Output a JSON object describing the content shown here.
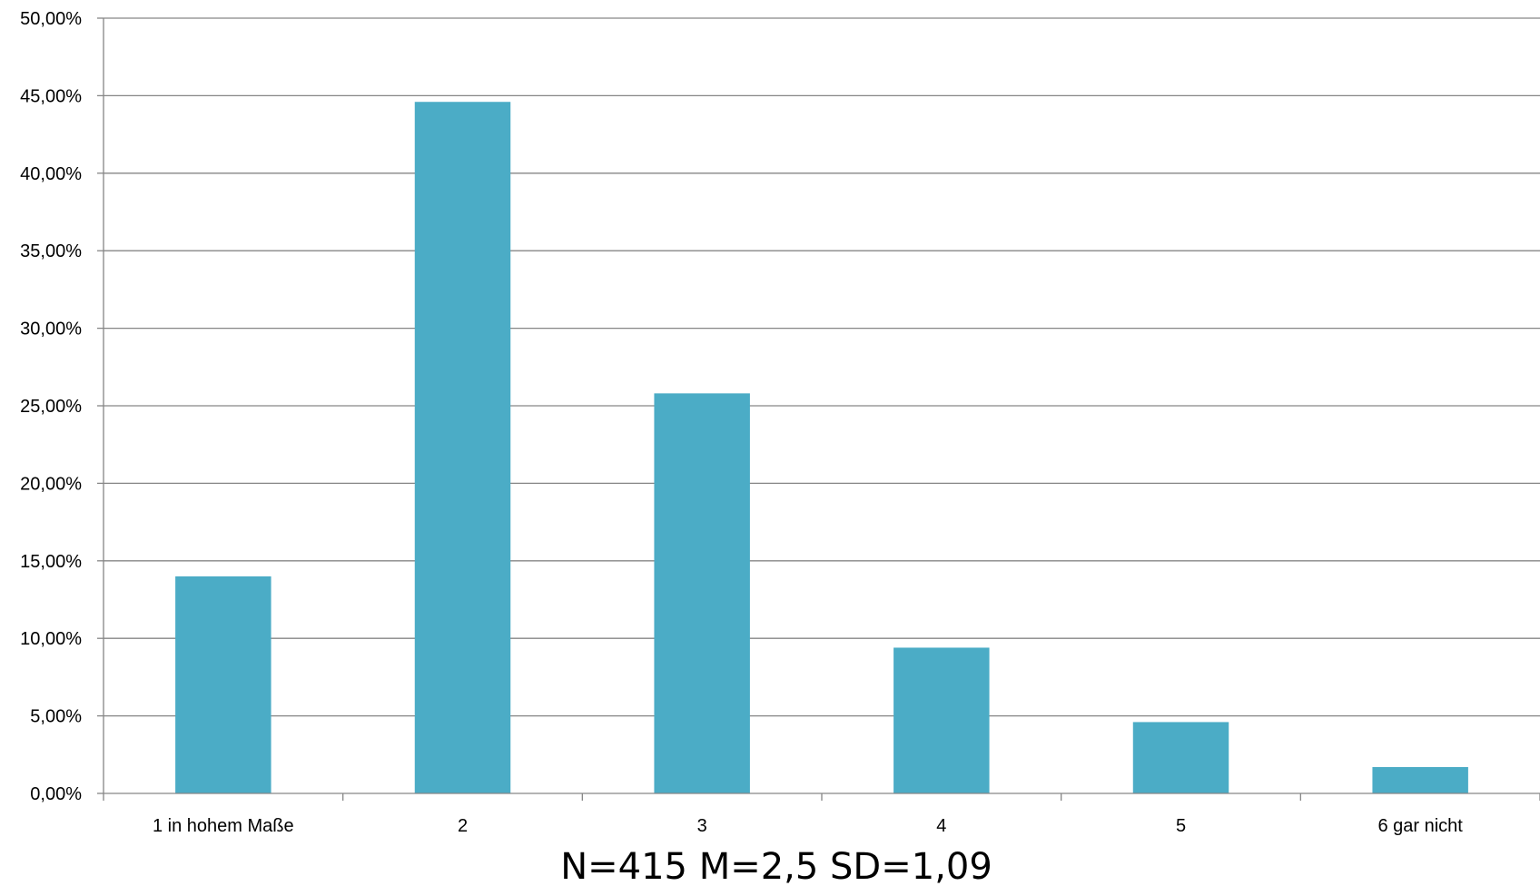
{
  "chart_data": {
    "type": "bar",
    "title": "",
    "xlabel": "N=415 M=2,5 SD=1,09",
    "ylabel": "",
    "categories": [
      "1 in hohem Maße",
      "2",
      "3",
      "4",
      "5",
      "6 gar nicht"
    ],
    "values": [
      14.0,
      44.6,
      25.8,
      9.4,
      4.6,
      1.7
    ],
    "y_ticks": [
      "0,00%",
      "5,00%",
      "10,00%",
      "15,00%",
      "20,00%",
      "25,00%",
      "30,00%",
      "35,00%",
      "40,00%",
      "45,00%",
      "50,00%"
    ],
    "ylim": [
      0,
      50
    ],
    "grid": true,
    "legend": "none",
    "bar_color": "#4BACC6",
    "grid_color": "#868686"
  }
}
